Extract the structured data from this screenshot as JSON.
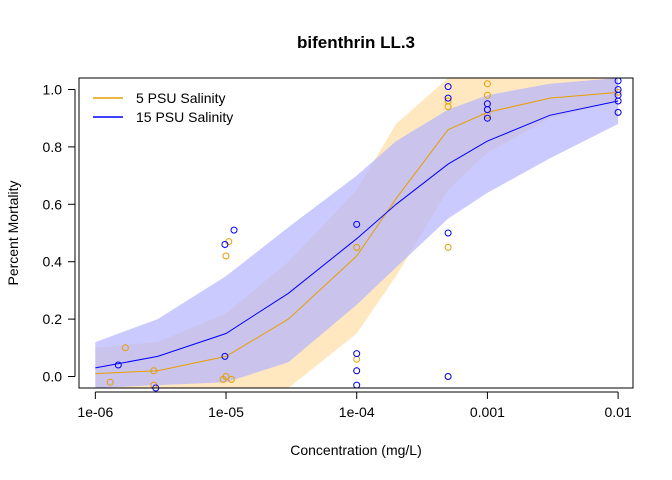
{
  "chart_data": {
    "type": "line",
    "title": "bifenthrin LL.3",
    "xlabel": "Concentration (mg/L)",
    "ylabel": "Percent Mortality",
    "x_scale": "log",
    "xlim": [
      7.5e-07,
      0.013
    ],
    "ylim": [
      -0.04,
      1.04
    ],
    "x_ticks": [
      1e-06,
      1e-05,
      0.0001,
      0.001,
      0.01
    ],
    "x_tick_labels": [
      "1e-06",
      "1e-05",
      "1e-04",
      "0.001",
      "0.01"
    ],
    "y_ticks": [
      0.0,
      0.2,
      0.4,
      0.6,
      0.8,
      1.0
    ],
    "y_tick_labels": [
      "0.0",
      "0.2",
      "0.4",
      "0.6",
      "0.8",
      "1.0"
    ],
    "legend_position": "top-left",
    "series": [
      {
        "name": "5 PSU Salinity",
        "color": "#E69F00",
        "band_color": "#FFE4B5",
        "curve": {
          "x": [
            1e-06,
            3e-06,
            1e-05,
            3e-05,
            0.0001,
            0.0002,
            0.0005,
            0.001,
            0.003,
            0.01
          ],
          "y": [
            0.01,
            0.02,
            0.07,
            0.2,
            0.42,
            0.62,
            0.86,
            0.92,
            0.97,
            0.99
          ]
        },
        "band_lower": [
          -0.1,
          -0.1,
          -0.1,
          -0.05,
          0.15,
          0.35,
          0.65,
          0.78,
          0.9,
          0.96
        ],
        "band_upper": [
          0.1,
          0.12,
          0.22,
          0.4,
          0.65,
          0.88,
          1.04,
          1.04,
          1.04,
          1.04
        ],
        "points": [
          {
            "x": 1.3e-06,
            "y": -0.02
          },
          {
            "x": 1.7e-06,
            "y": 0.1
          },
          {
            "x": 2.8e-06,
            "y": 0.02
          },
          {
            "x": 2.8e-06,
            "y": -0.03
          },
          {
            "x": 9.5e-06,
            "y": -0.01
          },
          {
            "x": 1e-05,
            "y": 0.42
          },
          {
            "x": 1.05e-05,
            "y": 0.47
          },
          {
            "x": 1e-05,
            "y": 0.0
          },
          {
            "x": 1.1e-05,
            "y": -0.01
          },
          {
            "x": 0.0001,
            "y": 0.45
          },
          {
            "x": 0.0001,
            "y": 0.06
          },
          {
            "x": 0.0001,
            "y": 0.02
          },
          {
            "x": 0.0005,
            "y": 0.45
          },
          {
            "x": 0.0005,
            "y": 0.94
          },
          {
            "x": 0.0005,
            "y": 0.96
          },
          {
            "x": 0.0005,
            "y": 0.0
          },
          {
            "x": 0.001,
            "y": 1.02
          },
          {
            "x": 0.001,
            "y": 0.98
          },
          {
            "x": 0.001,
            "y": 0.95
          },
          {
            "x": 0.001,
            "y": 0.91
          },
          {
            "x": 0.01,
            "y": 0.99
          },
          {
            "x": 0.01,
            "y": 0.96
          },
          {
            "x": 0.01,
            "y": 0.92
          }
        ]
      },
      {
        "name": "15 PSU Salinity",
        "color": "#0000FF",
        "band_color": "#B3B3FF",
        "curve": {
          "x": [
            1e-06,
            3e-06,
            1e-05,
            3e-05,
            0.0001,
            0.0002,
            0.0005,
            0.001,
            0.003,
            0.01
          ],
          "y": [
            0.03,
            0.07,
            0.15,
            0.29,
            0.48,
            0.6,
            0.74,
            0.82,
            0.91,
            0.96
          ]
        },
        "band_lower": [
          -0.04,
          -0.03,
          -0.02,
          0.05,
          0.25,
          0.38,
          0.55,
          0.64,
          0.76,
          0.88
        ],
        "band_upper": [
          0.12,
          0.2,
          0.35,
          0.52,
          0.7,
          0.82,
          0.93,
          0.98,
          1.02,
          1.04
        ],
        "points": [
          {
            "x": 1.5e-06,
            "y": 0.04
          },
          {
            "x": 2.9e-06,
            "y": -0.04
          },
          {
            "x": 9.8e-06,
            "y": 0.46
          },
          {
            "x": 1.15e-05,
            "y": 0.51
          },
          {
            "x": 9.8e-06,
            "y": 0.07
          },
          {
            "x": 0.0001,
            "y": 0.53
          },
          {
            "x": 0.0001,
            "y": 0.08
          },
          {
            "x": 0.0001,
            "y": 0.02
          },
          {
            "x": 0.0001,
            "y": -0.03
          },
          {
            "x": 0.0005,
            "y": 1.01
          },
          {
            "x": 0.0005,
            "y": 0.97
          },
          {
            "x": 0.0005,
            "y": 0.5
          },
          {
            "x": 0.0005,
            "y": 0.0
          },
          {
            "x": 0.001,
            "y": 0.95
          },
          {
            "x": 0.001,
            "y": 0.93
          },
          {
            "x": 0.001,
            "y": 0.9
          },
          {
            "x": 0.01,
            "y": 1.03
          },
          {
            "x": 0.01,
            "y": 1.0
          },
          {
            "x": 0.01,
            "y": 0.98
          },
          {
            "x": 0.01,
            "y": 0.96
          },
          {
            "x": 0.01,
            "y": 0.92
          }
        ]
      }
    ]
  }
}
